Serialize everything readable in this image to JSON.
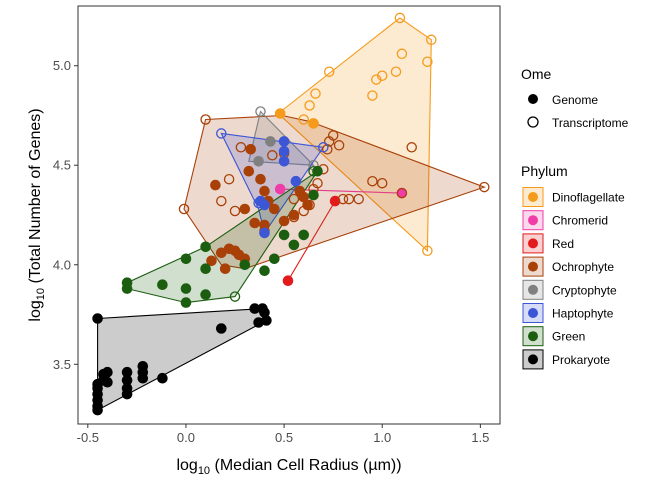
{
  "chart_data": {
    "type": "scatter",
    "xlabel_main": "log",
    "xlabel_sub": "10",
    "xlabel_rest": " (Median Cell Radius (µm))",
    "ylabel_main": "log",
    "ylabel_sub": "10",
    "ylabel_rest": " (Total Number of Genes)",
    "xlim": [
      -0.55,
      1.6
    ],
    "ylim": [
      3.2,
      5.3
    ],
    "xticks": [
      -0.5,
      0.0,
      0.5,
      1.0,
      1.5
    ],
    "xtick_labels": [
      "-0.5",
      "0.0",
      "0.5",
      "1.0",
      "1.5"
    ],
    "yticks": [
      3.5,
      4.0,
      4.5,
      5.0
    ],
    "ytick_labels": [
      "3.5",
      "4.0",
      "4.5",
      "5.0"
    ],
    "grid": false,
    "ome_legend": {
      "title": "Ome",
      "entries": [
        {
          "label": "Genome",
          "filled": true
        },
        {
          "label": "Transcriptome",
          "filled": false
        }
      ]
    },
    "phylum_legend": {
      "title": "Phylum",
      "entries": [
        {
          "label": "Dinoflagellate",
          "color": "#F59A1B"
        },
        {
          "label": "Chromerid",
          "color": "#F03CA7"
        },
        {
          "label": "Red",
          "color": "#E31A1C"
        },
        {
          "label": "Ochrophyte",
          "color": "#A94008"
        },
        {
          "label": "Cryptophyte",
          "color": "#808080"
        },
        {
          "label": "Haptophyte",
          "color": "#3C56D6"
        },
        {
          "label": "Green",
          "color": "#1B5E10"
        },
        {
          "label": "Prokaryote",
          "color": "#000000"
        }
      ]
    },
    "series": [
      {
        "name": "Dinoflagellate",
        "color": "#F59A1B",
        "hull": [
          [
            1.09,
            5.24
          ],
          [
            1.25,
            5.13
          ],
          [
            1.23,
            4.07
          ],
          [
            0.47,
            4.76
          ]
        ],
        "genome": [
          [
            0.48,
            4.76
          ],
          [
            0.65,
            4.71
          ]
        ],
        "transcriptome": [
          [
            1.09,
            5.24
          ],
          [
            1.25,
            5.13
          ],
          [
            1.23,
            5.02
          ],
          [
            1.1,
            5.06
          ],
          [
            1.07,
            4.97
          ],
          [
            1.0,
            4.95
          ],
          [
            0.97,
            4.93
          ],
          [
            0.95,
            4.85
          ],
          [
            0.73,
            4.97
          ],
          [
            0.66,
            4.86
          ],
          [
            0.63,
            4.8
          ],
          [
            0.6,
            4.73
          ],
          [
            1.23,
            4.07
          ]
        ]
      },
      {
        "name": "Chromerid",
        "color": "#F03CA7",
        "hull": [
          [
            0.48,
            4.38
          ],
          [
            1.1,
            4.36
          ]
        ],
        "genome": [
          [
            0.48,
            4.38
          ],
          [
            1.1,
            4.36
          ]
        ],
        "transcriptome": []
      },
      {
        "name": "Red",
        "color": "#E31A1C",
        "hull": [
          [
            0.52,
            3.92
          ],
          [
            0.76,
            4.32
          ]
        ],
        "genome": [
          [
            0.52,
            3.92
          ],
          [
            0.76,
            4.32
          ]
        ],
        "transcriptome": []
      },
      {
        "name": "Ochrophyte",
        "color": "#A94008",
        "hull": [
          [
            -0.01,
            4.28
          ],
          [
            0.1,
            4.73
          ],
          [
            0.49,
            4.75
          ],
          [
            0.63,
            4.72
          ],
          [
            1.52,
            4.39
          ],
          [
            0.3,
            3.98
          ],
          [
            0.18,
            4.0
          ]
        ],
        "genome": [
          [
            0.15,
            4.4
          ],
          [
            0.18,
            4.06
          ],
          [
            0.13,
            4.02
          ],
          [
            0.2,
            3.98
          ],
          [
            0.22,
            4.08
          ],
          [
            0.25,
            4.07
          ],
          [
            0.27,
            4.05
          ],
          [
            0.3,
            4.03
          ],
          [
            0.32,
            4.47
          ],
          [
            0.33,
            4.58
          ],
          [
            0.38,
            4.43
          ],
          [
            0.4,
            4.37
          ],
          [
            0.42,
            4.32
          ],
          [
            0.45,
            4.28
          ],
          [
            0.3,
            4.28
          ],
          [
            0.35,
            4.21
          ],
          [
            0.4,
            4.2
          ],
          [
            0.5,
            4.22
          ],
          [
            0.55,
            4.25
          ],
          [
            0.58,
            4.37
          ],
          [
            0.6,
            4.34
          ],
          [
            0.62,
            4.3
          ]
        ],
        "transcriptome": [
          [
            -0.01,
            4.28
          ],
          [
            0.1,
            4.73
          ],
          [
            0.18,
            4.32
          ],
          [
            0.22,
            4.43
          ],
          [
            0.25,
            4.27
          ],
          [
            0.28,
            4.59
          ],
          [
            0.44,
            4.55
          ],
          [
            0.5,
            4.56
          ],
          [
            0.55,
            4.33
          ],
          [
            0.6,
            4.27
          ],
          [
            0.63,
            4.3
          ],
          [
            0.65,
            4.38
          ],
          [
            0.67,
            4.41
          ],
          [
            0.7,
            4.48
          ],
          [
            0.72,
            4.58
          ],
          [
            0.73,
            4.62
          ],
          [
            0.75,
            4.65
          ],
          [
            0.78,
            4.6
          ],
          [
            0.8,
            4.33
          ],
          [
            0.83,
            4.33
          ],
          [
            0.88,
            4.33
          ],
          [
            0.95,
            4.42
          ],
          [
            1.0,
            4.41
          ],
          [
            1.1,
            4.36
          ],
          [
            1.15,
            4.59
          ],
          [
            1.52,
            4.39
          ],
          [
            0.55,
            4.24
          ],
          [
            0.4,
            4.17
          ]
        ]
      },
      {
        "name": "Cryptophyte",
        "color": "#808080",
        "hull": [
          [
            0.38,
            4.77
          ],
          [
            0.65,
            4.5
          ],
          [
            0.32,
            4.52
          ]
        ],
        "genome": [
          [
            0.37,
            4.52
          ],
          [
            0.43,
            4.62
          ]
        ],
        "transcriptome": [
          [
            0.38,
            4.77
          ],
          [
            0.65,
            4.5
          ]
        ]
      },
      {
        "name": "Haptophyte",
        "color": "#3C56D6",
        "hull": [
          [
            0.18,
            4.66
          ],
          [
            0.7,
            4.59
          ],
          [
            0.4,
            4.16
          ],
          [
            0.37,
            4.28
          ]
        ],
        "genome": [
          [
            0.5,
            4.62
          ],
          [
            0.5,
            4.57
          ],
          [
            0.5,
            4.52
          ],
          [
            0.56,
            4.42
          ],
          [
            0.4,
            4.3
          ],
          [
            0.4,
            4.16
          ],
          [
            0.38,
            4.32
          ]
        ],
        "transcriptome": [
          [
            0.18,
            4.66
          ],
          [
            0.7,
            4.59
          ],
          [
            0.37,
            4.31
          ]
        ]
      },
      {
        "name": "Green",
        "color": "#1B5E10",
        "hull": [
          [
            -0.3,
            3.91
          ],
          [
            0.1,
            4.09
          ],
          [
            0.67,
            4.47
          ],
          [
            0.25,
            3.84
          ],
          [
            0.0,
            3.81
          ],
          [
            -0.3,
            3.88
          ]
        ],
        "genome": [
          [
            -0.3,
            3.91
          ],
          [
            -0.3,
            3.88
          ],
          [
            -0.12,
            3.9
          ],
          [
            0.0,
            4.03
          ],
          [
            0.0,
            3.88
          ],
          [
            0.0,
            3.81
          ],
          [
            0.1,
            4.09
          ],
          [
            0.1,
            3.98
          ],
          [
            0.1,
            3.85
          ],
          [
            0.3,
            4.0
          ],
          [
            0.4,
            3.97
          ],
          [
            0.45,
            4.03
          ],
          [
            0.5,
            4.15
          ],
          [
            0.55,
            4.1
          ],
          [
            0.6,
            4.15
          ],
          [
            0.65,
            4.35
          ],
          [
            0.67,
            4.47
          ]
        ],
        "transcriptome": [
          [
            0.25,
            3.84
          ],
          [
            0.65,
            4.47
          ]
        ]
      },
      {
        "name": "Prokaryote",
        "color": "#000000",
        "hull": [
          [
            -0.45,
            3.73
          ],
          [
            0.39,
            3.78
          ],
          [
            0.41,
            3.72
          ],
          [
            -0.45,
            3.27
          ]
        ],
        "genome": [
          [
            -0.45,
            3.73
          ],
          [
            -0.45,
            3.4
          ],
          [
            -0.45,
            3.38
          ],
          [
            -0.45,
            3.35
          ],
          [
            -0.45,
            3.32
          ],
          [
            -0.45,
            3.29
          ],
          [
            -0.45,
            3.27
          ],
          [
            -0.42,
            3.45
          ],
          [
            -0.42,
            3.42
          ],
          [
            -0.4,
            3.46
          ],
          [
            -0.4,
            3.41
          ],
          [
            -0.3,
            3.46
          ],
          [
            -0.3,
            3.42
          ],
          [
            -0.3,
            3.38
          ],
          [
            -0.3,
            3.35
          ],
          [
            -0.22,
            3.49
          ],
          [
            -0.22,
            3.46
          ],
          [
            -0.22,
            3.43
          ],
          [
            -0.12,
            3.43
          ],
          [
            0.18,
            3.68
          ],
          [
            0.35,
            3.78
          ],
          [
            0.39,
            3.78
          ],
          [
            0.37,
            3.71
          ],
          [
            0.4,
            3.76
          ],
          [
            0.41,
            3.72
          ]
        ],
        "transcriptome": []
      }
    ]
  }
}
